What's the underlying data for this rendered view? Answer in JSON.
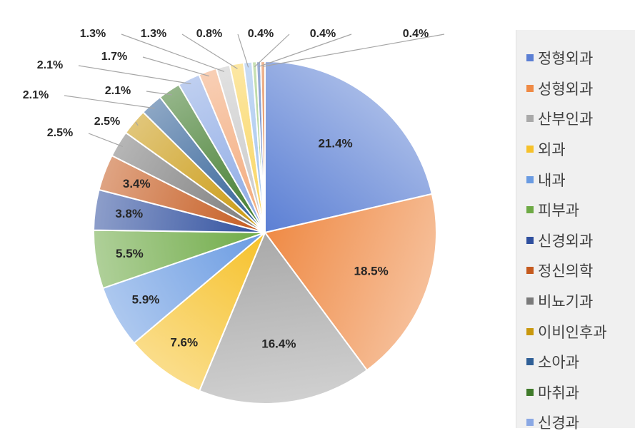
{
  "chart_data": {
    "type": "pie",
    "title": "",
    "legend_position": "right",
    "slices": [
      {
        "name": "정형외과",
        "value": 21.4,
        "label": "21.4%",
        "color": "#5b7fd4"
      },
      {
        "name": "성형외과",
        "value": 18.5,
        "label": "18.5%",
        "color": "#ef8a45"
      },
      {
        "name": "산부인과",
        "value": 16.4,
        "label": "16.4%",
        "color": "#a9a9a9"
      },
      {
        "name": "외과",
        "value": 7.6,
        "label": "7.6%",
        "color": "#f6c12a"
      },
      {
        "name": "내과",
        "value": 5.9,
        "label": "5.9%",
        "color": "#6a9be2"
      },
      {
        "name": "피부과",
        "value": 5.5,
        "label": "5.5%",
        "color": "#6eaa45"
      },
      {
        "name": "신경외과",
        "value": 3.8,
        "label": "3.8%",
        "color": "#2f4f9e"
      },
      {
        "name": "정신의학",
        "value": 3.4,
        "label": "3.4%",
        "color": "#c55a1e"
      },
      {
        "name": "비뇨기과",
        "value": 2.5,
        "label": "2.5%",
        "color": "#7a7a7a"
      },
      {
        "name": "이비인후과",
        "value": 2.5,
        "label": "2.5%",
        "color": "#c9980d"
      },
      {
        "name": "소아과",
        "value": 2.1,
        "label": "2.1%",
        "color": "#2f5f96"
      },
      {
        "name": "마취과",
        "value": 2.1,
        "label": "2.1%",
        "color": "#3f7a2a"
      },
      {
        "name": "신경과",
        "value": 2.1,
        "label": "2.1%",
        "color": "#8aa8e4"
      },
      {
        "name": "",
        "value": 1.7,
        "label": "1.7%",
        "color": "#f3a878"
      },
      {
        "name": "",
        "value": 1.3,
        "label": "1.3%",
        "color": "#c8c8c8"
      },
      {
        "name": "",
        "value": 1.3,
        "label": "1.3%",
        "color": "#f9d45a"
      },
      {
        "name": "",
        "value": 0.8,
        "label": "0.8%",
        "color": "#9cc0ec"
      },
      {
        "name": "",
        "value": 0.4,
        "label": "0.4%",
        "color": "#9cc87a"
      },
      {
        "name": "",
        "value": 0.4,
        "label": "0.4%",
        "color": "#4d6fb8"
      },
      {
        "name": "",
        "value": 0.4,
        "label": "0.4%",
        "color": "#e07a3a"
      }
    ]
  }
}
